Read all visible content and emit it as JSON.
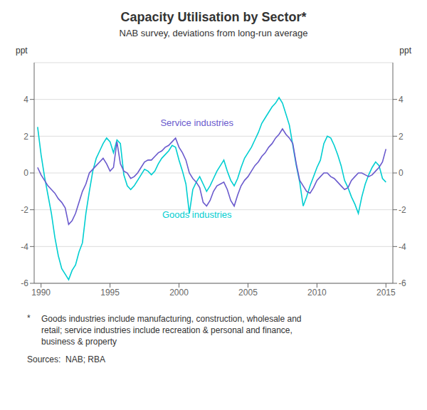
{
  "chart_data": {
    "type": "line",
    "title": "Capacity Utilisation by Sector*",
    "subtitle": "NAB survey, deviations from long-run average",
    "y_label": "ppt",
    "y2_label": "ppt",
    "xlim": [
      1989.5,
      2015.5
    ],
    "xticks": [
      1990,
      1995,
      2000,
      2005,
      2010,
      2015
    ],
    "ylim": [
      -6,
      6
    ],
    "yticks": [
      -6,
      -4,
      -2,
      0,
      2,
      4
    ],
    "y2lim": [
      -6,
      6
    ],
    "y2ticks": [
      -6,
      -4,
      -2,
      0,
      2,
      4
    ],
    "grid": true,
    "x": [
      1989.75,
      1990.0,
      1990.25,
      1990.5,
      1990.75,
      1991.0,
      1991.25,
      1991.5,
      1991.75,
      1992.0,
      1992.25,
      1992.5,
      1992.75,
      1993.0,
      1993.25,
      1993.5,
      1993.75,
      1994.0,
      1994.25,
      1994.5,
      1994.75,
      1995.0,
      1995.25,
      1995.5,
      1995.75,
      1996.0,
      1996.25,
      1996.5,
      1996.75,
      1997.0,
      1997.25,
      1997.5,
      1997.75,
      1998.0,
      1998.25,
      1998.5,
      1998.75,
      1999.0,
      1999.25,
      1999.5,
      1999.75,
      2000.0,
      2000.25,
      2000.5,
      2000.75,
      2001.0,
      2001.25,
      2001.5,
      2001.75,
      2002.0,
      2002.25,
      2002.5,
      2002.75,
      2003.0,
      2003.25,
      2003.5,
      2003.75,
      2004.0,
      2004.25,
      2004.5,
      2004.75,
      2005.0,
      2005.25,
      2005.5,
      2005.75,
      2006.0,
      2006.25,
      2006.5,
      2006.75,
      2007.0,
      2007.25,
      2007.5,
      2007.75,
      2008.0,
      2008.25,
      2008.5,
      2008.75,
      2009.0,
      2009.25,
      2009.5,
      2009.75,
      2010.0,
      2010.25,
      2010.5,
      2010.75,
      2011.0,
      2011.25,
      2011.5,
      2011.75,
      2012.0,
      2012.25,
      2012.5,
      2012.75,
      2013.0,
      2013.25,
      2013.5,
      2013.75,
      2014.0,
      2014.25,
      2014.5,
      2014.75,
      2015.0
    ],
    "series": [
      {
        "name": "Goods industries",
        "color": "#00CED1",
        "values": [
          2.5,
          1.0,
          -0.2,
          -1.2,
          -2.2,
          -3.5,
          -4.5,
          -5.2,
          -5.5,
          -5.8,
          -5.3,
          -5.0,
          -4.3,
          -3.8,
          -2.2,
          -1.0,
          0.1,
          0.8,
          1.2,
          1.6,
          1.9,
          1.7,
          1.1,
          1.8,
          1.6,
          -0.1,
          -0.7,
          -0.9,
          -0.7,
          -0.4,
          -0.1,
          0.2,
          0.1,
          -0.1,
          0.1,
          0.5,
          0.8,
          1.0,
          1.2,
          1.5,
          1.4,
          0.7,
          0.1,
          -0.6,
          -2.2,
          -0.9,
          -0.5,
          -0.2,
          -0.6,
          -1.0,
          -0.7,
          -0.3,
          0.1,
          0.4,
          0.7,
          0.1,
          -0.4,
          -0.7,
          -0.3,
          0.3,
          0.8,
          1.1,
          1.4,
          1.8,
          2.2,
          2.7,
          3.0,
          3.3,
          3.6,
          3.8,
          4.1,
          3.8,
          3.2,
          2.6,
          1.5,
          0.4,
          -0.5,
          -1.8,
          -1.3,
          -0.7,
          -0.2,
          0.3,
          0.7,
          1.6,
          2.0,
          1.9,
          1.5,
          1.0,
          0.4,
          -0.4,
          -0.8,
          -1.3,
          -1.7,
          -2.2,
          -1.3,
          -0.6,
          -0.1,
          0.3,
          0.6,
          0.4,
          -0.3,
          -0.5
        ]
      },
      {
        "name": "Service industries",
        "color": "#6A5ACD",
        "values": [
          0.3,
          -0.1,
          -0.4,
          -0.7,
          -0.9,
          -1.1,
          -1.4,
          -1.6,
          -1.9,
          -2.8,
          -2.6,
          -2.2,
          -1.6,
          -1.0,
          -0.6,
          0.0,
          0.2,
          0.4,
          0.6,
          0.8,
          0.5,
          0.1,
          0.3,
          1.7,
          0.5,
          0.1,
          0.0,
          -0.3,
          -0.2,
          0.0,
          0.3,
          0.6,
          0.7,
          0.7,
          0.9,
          1.1,
          1.2,
          1.4,
          1.5,
          1.7,
          1.9,
          1.4,
          1.1,
          0.7,
          0.0,
          -0.3,
          -0.5,
          -0.8,
          -1.6,
          -1.8,
          -1.5,
          -1.0,
          -0.7,
          -0.6,
          -0.5,
          -0.9,
          -1.5,
          -1.8,
          -1.2,
          -0.7,
          -0.4,
          -0.2,
          0.1,
          0.4,
          0.6,
          0.9,
          1.1,
          1.4,
          1.6,
          1.9,
          2.1,
          2.4,
          2.1,
          1.9,
          1.6,
          0.5,
          -0.4,
          -0.7,
          -1.0,
          -1.1,
          -0.8,
          -0.4,
          -0.2,
          0.0,
          0.0,
          -0.2,
          -0.3,
          -0.5,
          -0.7,
          -0.9,
          -0.8,
          -0.4,
          -0.2,
          0.0,
          0.0,
          -0.1,
          -0.2,
          -0.1,
          0.1,
          0.3,
          0.6,
          1.3
        ]
      }
    ],
    "annotations": [
      {
        "text": "Service industries",
        "x": 2001.3,
        "y": 2.35,
        "color": "#6A5ACD"
      },
      {
        "text": "Goods industries",
        "x": 2001.3,
        "y": -2.65,
        "color": "#00CED1"
      }
    ],
    "footnote_mark": "*",
    "footnote": "Goods industries include manufacturing, construction, wholesale and\nretail; service industries include recreation & personal and finance,\nbusiness & property",
    "source": "Sources:  NAB; RBA"
  }
}
